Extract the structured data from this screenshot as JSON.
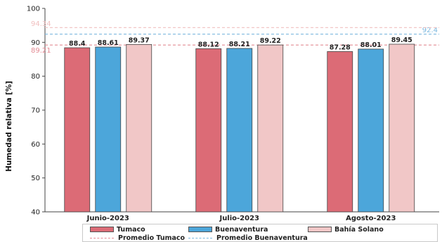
{
  "chart_data": {
    "type": "bar",
    "ylabel": "Humedad relativa [%]",
    "ylim": [
      40,
      100
    ],
    "yticks": [
      40,
      50,
      60,
      70,
      80,
      90,
      100
    ],
    "categories": [
      "Junio-2023",
      "Julio-2023",
      "Agosto-2023"
    ],
    "series": [
      {
        "name": "Tumaco",
        "color": "#dc6b76",
        "values": [
          88.4,
          88.12,
          87.28
        ],
        "labels": [
          "88.4",
          "88.12",
          "87.28"
        ]
      },
      {
        "name": "Buenaventura",
        "color": "#4ca6da",
        "values": [
          88.61,
          88.21,
          88.01
        ],
        "labels": [
          "88.61",
          "88.21",
          "88.01"
        ]
      },
      {
        "name": "Bahía Solano",
        "color": "#f1c7c7",
        "values": [
          89.37,
          89.22,
          89.45
        ],
        "labels": [
          "89.37",
          "89.22",
          "89.45"
        ]
      }
    ],
    "averages": [
      {
        "name": "Promedio Tumaco",
        "value": 89.21,
        "label": "89.21",
        "color": "#e38b94",
        "label_side": "left"
      },
      {
        "name": "Promedio Buenaventura",
        "value": 92.4,
        "label": "92.4",
        "color": "#7ab7df",
        "label_side": "right"
      },
      {
        "name": "",
        "value": 94.34,
        "label": "94.34",
        "color": "#f1c0c0",
        "label_side": "left"
      }
    ],
    "legend": {
      "placement": "bottom",
      "entries": [
        "Tumaco",
        "Buenaventura",
        "Bahía Solano",
        "Promedio Tumaco",
        "Promedio Buenaventura"
      ]
    },
    "grid": false
  }
}
